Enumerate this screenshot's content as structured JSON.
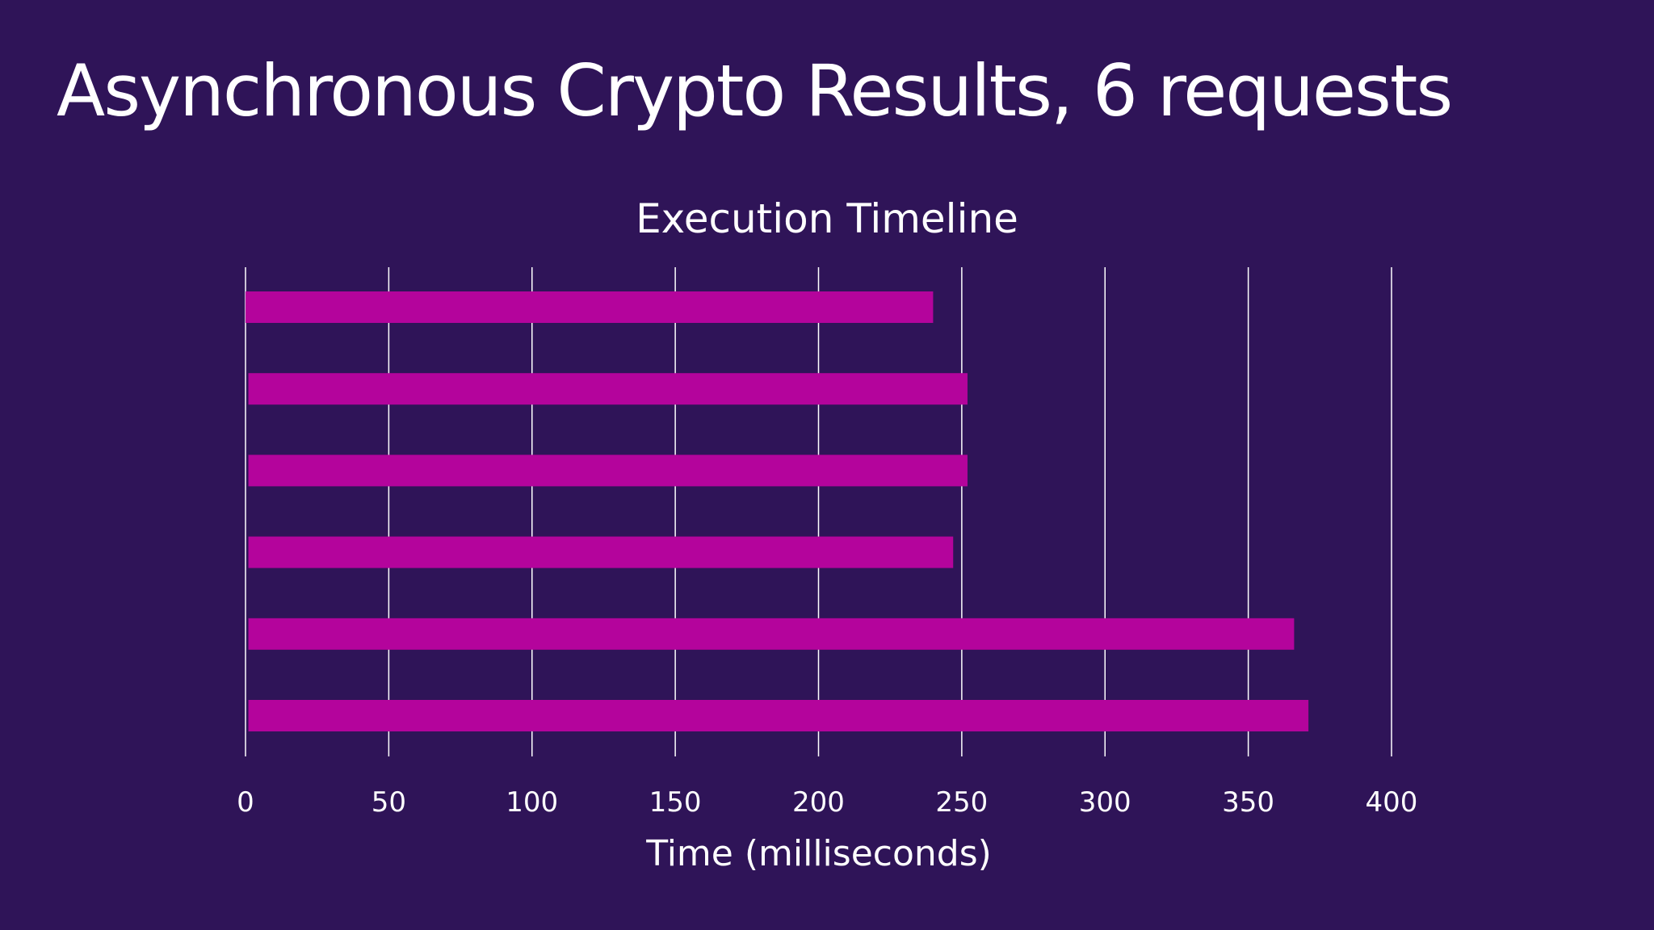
{
  "slide": {
    "title": "Asynchronous Crypto Results, 6 requests"
  },
  "colors": {
    "background": "#2f1458",
    "bar": "#b4049c",
    "gridline": "#ffffff",
    "text": "#ffffff"
  },
  "chart_data": {
    "type": "bar",
    "orientation": "horizontal",
    "title": "Execution Timeline",
    "xlabel": "Time (milliseconds)",
    "ylabel": "",
    "xlim": [
      0,
      400
    ],
    "ticks": [
      0,
      50,
      100,
      150,
      200,
      250,
      300,
      350,
      400
    ],
    "grid": true,
    "legend": "none",
    "series": [
      {
        "bars": [
          {
            "start": 0,
            "end": 240
          },
          {
            "start": 1,
            "end": 252
          },
          {
            "start": 1,
            "end": 252
          },
          {
            "start": 1,
            "end": 247
          },
          {
            "start": 1,
            "end": 366
          },
          {
            "start": 1,
            "end": 371
          }
        ]
      }
    ]
  }
}
